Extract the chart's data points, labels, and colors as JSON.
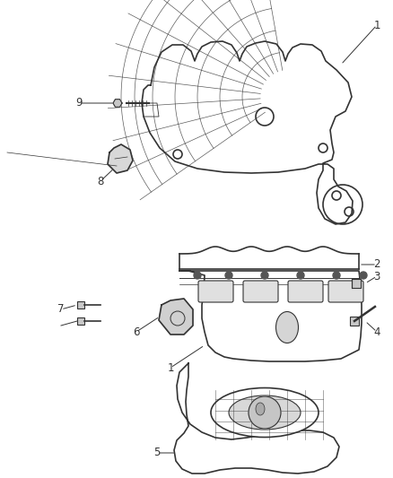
{
  "bg_color": "#ffffff",
  "line_color": "#333333",
  "label_color": "#333333",
  "label_fontsize": 8.5,
  "fig_width": 4.38,
  "fig_height": 5.33,
  "dpi": 100
}
